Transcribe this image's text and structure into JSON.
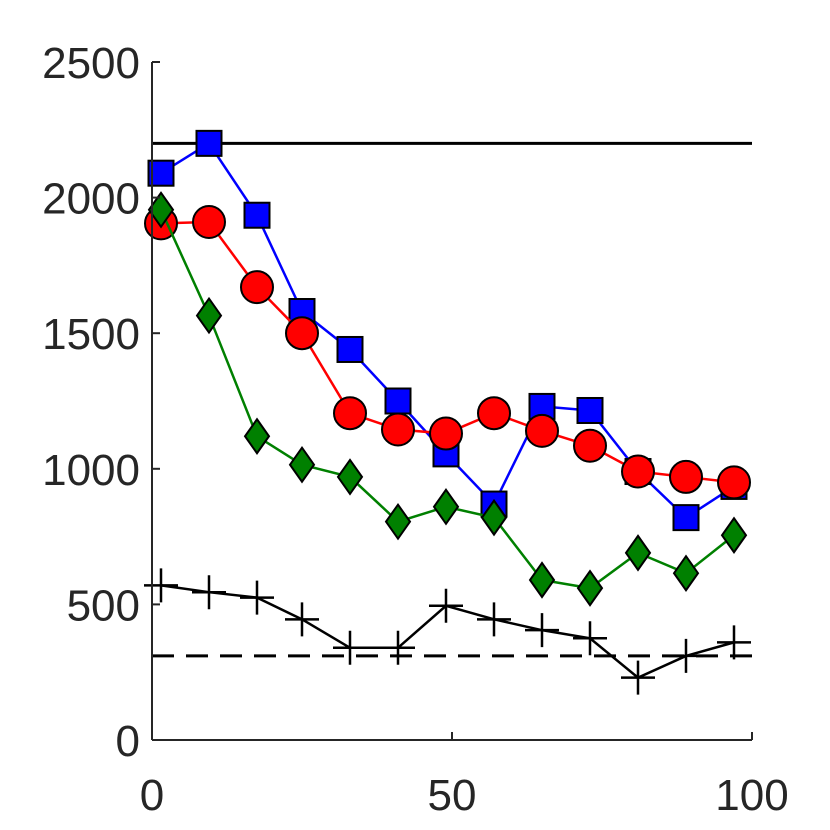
{
  "chart_data": {
    "type": "line",
    "title": "",
    "xlabel": "",
    "ylabel": "",
    "xlim": [
      0,
      100
    ],
    "ylim": [
      0,
      2500
    ],
    "xticks": [
      0,
      50,
      100
    ],
    "yticks": [
      0,
      500,
      1000,
      1500,
      2000,
      2500
    ],
    "grid": false,
    "legend": "none",
    "x": [
      1.5,
      9.5,
      17.5,
      25,
      33,
      41,
      49,
      57,
      65,
      73,
      81,
      89,
      97
    ],
    "series": [
      {
        "marker": "square",
        "color": "#0000ff",
        "line_color": "#0000ff",
        "values": [
          2090,
          2200,
          1935,
          1580,
          1440,
          1250,
          1055,
          870,
          1230,
          1215,
          990,
          820,
          935
        ]
      },
      {
        "marker": "circle",
        "color": "#ff0000",
        "line_color": "#ff0000",
        "values": [
          1905,
          1910,
          1670,
          1500,
          1205,
          1145,
          1130,
          1205,
          1140,
          1085,
          990,
          970,
          950
        ]
      },
      {
        "marker": "diamond",
        "color": "#008000",
        "line_color": "#008000",
        "values": [
          1955,
          1565,
          1120,
          1015,
          970,
          805,
          860,
          820,
          590,
          560,
          690,
          615,
          755
        ]
      },
      {
        "marker": "plus",
        "color": "#000000",
        "line_color": "#000000",
        "values": [
          570,
          545,
          525,
          445,
          340,
          340,
          495,
          445,
          405,
          375,
          230,
          310,
          360
        ]
      }
    ],
    "reference_lines": [
      {
        "style": "solid",
        "color": "#000000",
        "y": 2200
      },
      {
        "style": "dashed",
        "color": "#000000",
        "y": 310
      }
    ]
  }
}
